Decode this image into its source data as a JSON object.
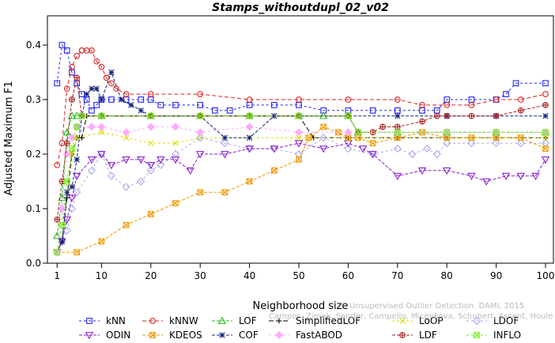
{
  "chart_data": {
    "type": "line",
    "title": "Stamps_withoutdupl_02_v02",
    "xlabel": "Neighborhood size",
    "ylabel": "Adjusted Maximum F1",
    "xlim": [
      0,
      100
    ],
    "ylim": [
      0,
      0.45
    ],
    "xticks": [
      1,
      10,
      20,
      30,
      40,
      50,
      60,
      70,
      80,
      90,
      100
    ],
    "yticks": [
      0.0,
      0.1,
      0.2,
      0.3,
      0.4
    ],
    "grid": false,
    "legend_position": "bottom",
    "watermark": "E. Campos, A. Zimek, J. Sander, R. Campello, B. Micenkova, E. Schubert, I. Assent, M. Houle Unsupervised Outlier Detection. DAMI, 2015.",
    "watermark_lines": [
      "Unsupervised Outlier Detection. DAMI, 2015.",
      "Campos, Zimek, Sander, Campello, Micenkova, Schubert, Assent, Houle"
    ],
    "series": [
      {
        "name": "kNN",
        "color": "#2222ff",
        "marker": "square",
        "dash": "3,3",
        "points": [
          [
            1,
            0.33
          ],
          [
            2,
            0.4
          ],
          [
            3,
            0.39
          ],
          [
            4,
            0.35
          ],
          [
            5,
            0.33
          ],
          [
            6,
            0.31
          ],
          [
            7,
            0.3
          ],
          [
            8,
            0.28
          ],
          [
            9,
            0.29
          ],
          [
            10,
            0.3
          ],
          [
            12,
            0.3
          ],
          [
            15,
            0.3
          ],
          [
            18,
            0.3
          ],
          [
            20,
            0.3
          ],
          [
            22,
            0.29
          ],
          [
            25,
            0.29
          ],
          [
            30,
            0.29
          ],
          [
            33,
            0.28
          ],
          [
            36,
            0.28
          ],
          [
            40,
            0.29
          ],
          [
            45,
            0.29
          ],
          [
            50,
            0.29
          ],
          [
            55,
            0.28
          ],
          [
            60,
            0.28
          ],
          [
            65,
            0.28
          ],
          [
            70,
            0.28
          ],
          [
            75,
            0.28
          ],
          [
            78,
            0.28
          ],
          [
            80,
            0.3
          ],
          [
            85,
            0.3
          ],
          [
            90,
            0.3
          ],
          [
            92,
            0.31
          ],
          [
            94,
            0.33
          ],
          [
            100,
            0.33
          ]
        ]
      },
      {
        "name": "kNNW",
        "color": "#dd2222",
        "marker": "circle",
        "dash": "5,3",
        "points": [
          [
            1,
            0.18
          ],
          [
            2,
            0.22
          ],
          [
            3,
            0.32
          ],
          [
            4,
            0.36
          ],
          [
            5,
            0.38
          ],
          [
            6,
            0.39
          ],
          [
            7,
            0.39
          ],
          [
            8,
            0.39
          ],
          [
            9,
            0.37
          ],
          [
            10,
            0.36
          ],
          [
            11,
            0.34
          ],
          [
            12,
            0.33
          ],
          [
            13,
            0.32
          ],
          [
            15,
            0.31
          ],
          [
            20,
            0.31
          ],
          [
            30,
            0.31
          ],
          [
            40,
            0.3
          ],
          [
            50,
            0.3
          ],
          [
            60,
            0.3
          ],
          [
            70,
            0.3
          ],
          [
            75,
            0.29
          ],
          [
            80,
            0.29
          ],
          [
            85,
            0.29
          ],
          [
            90,
            0.3
          ],
          [
            95,
            0.3
          ],
          [
            100,
            0.31
          ]
        ]
      },
      {
        "name": "LOF",
        "color": "#22bb22",
        "marker": "triangle",
        "dash": "4,2",
        "points": [
          [
            1,
            0.05
          ],
          [
            2,
            0.12
          ],
          [
            3,
            0.24
          ],
          [
            4,
            0.27
          ],
          [
            5,
            0.27
          ],
          [
            10,
            0.27
          ],
          [
            20,
            0.27
          ],
          [
            30,
            0.27
          ],
          [
            40,
            0.27
          ],
          [
            50,
            0.27
          ],
          [
            55,
            0.27
          ],
          [
            60,
            0.27
          ],
          [
            62,
            0.24
          ],
          [
            70,
            0.24
          ],
          [
            80,
            0.24
          ],
          [
            90,
            0.24
          ],
          [
            100,
            0.24
          ]
        ]
      },
      {
        "name": "SimplifiedLOF",
        "color": "#000000",
        "marker": "plus",
        "dash": "6,3",
        "points": [
          [
            1,
            0.02
          ],
          [
            2,
            0.04
          ],
          [
            3,
            0.12
          ],
          [
            4,
            0.2
          ],
          [
            5,
            0.23
          ],
          [
            6,
            0.23
          ],
          [
            7,
            0.27
          ],
          [
            10,
            0.27
          ],
          [
            20,
            0.27
          ],
          [
            30,
            0.27
          ],
          [
            40,
            0.27
          ],
          [
            50,
            0.27
          ],
          [
            53,
            0.23
          ],
          [
            60,
            0.23
          ],
          [
            70,
            0.23
          ],
          [
            80,
            0.23
          ],
          [
            90,
            0.23
          ],
          [
            100,
            0.23
          ]
        ]
      },
      {
        "name": "LoOP",
        "color": "#dddd00",
        "marker": "x",
        "dash": "3,3",
        "points": [
          [
            1,
            0.02
          ],
          [
            2,
            0.07
          ],
          [
            3,
            0.15
          ],
          [
            4,
            0.2
          ],
          [
            5,
            0.23
          ],
          [
            10,
            0.24
          ],
          [
            15,
            0.23
          ],
          [
            20,
            0.22
          ],
          [
            25,
            0.22
          ],
          [
            30,
            0.23
          ],
          [
            40,
            0.23
          ],
          [
            50,
            0.23
          ],
          [
            60,
            0.23
          ],
          [
            70,
            0.23
          ],
          [
            80,
            0.23
          ],
          [
            90,
            0.23
          ],
          [
            100,
            0.23
          ]
        ]
      },
      {
        "name": "LDOF",
        "color": "#aaaaee",
        "marker": "diamond",
        "dash": "3,3",
        "points": [
          [
            1,
            0.02
          ],
          [
            2,
            0.04
          ],
          [
            3,
            0.06
          ],
          [
            4,
            0.1
          ],
          [
            5,
            0.13
          ],
          [
            8,
            0.17
          ],
          [
            10,
            0.2
          ],
          [
            12,
            0.16
          ],
          [
            15,
            0.14
          ],
          [
            18,
            0.15
          ],
          [
            20,
            0.17
          ],
          [
            22,
            0.18
          ],
          [
            25,
            0.2
          ],
          [
            30,
            0.23
          ],
          [
            35,
            0.22
          ],
          [
            40,
            0.21
          ],
          [
            45,
            0.21
          ],
          [
            50,
            0.2
          ],
          [
            55,
            0.23
          ],
          [
            60,
            0.21
          ],
          [
            65,
            0.2
          ],
          [
            70,
            0.21
          ],
          [
            73,
            0.2
          ],
          [
            76,
            0.21
          ],
          [
            78,
            0.2
          ],
          [
            80,
            0.22
          ],
          [
            85,
            0.22
          ],
          [
            90,
            0.22
          ],
          [
            95,
            0.22
          ],
          [
            100,
            0.22
          ]
        ]
      },
      {
        "name": "ODIN",
        "color": "#8822cc",
        "marker": "triangle-down",
        "dash": "4,2",
        "points": [
          [
            1,
            0.02
          ],
          [
            2,
            0.04
          ],
          [
            3,
            0.08
          ],
          [
            4,
            0.12
          ],
          [
            5,
            0.16
          ],
          [
            8,
            0.19
          ],
          [
            10,
            0.2
          ],
          [
            12,
            0.18
          ],
          [
            15,
            0.19
          ],
          [
            18,
            0.19
          ],
          [
            20,
            0.18
          ],
          [
            22,
            0.19
          ],
          [
            25,
            0.19
          ],
          [
            28,
            0.17
          ],
          [
            30,
            0.2
          ],
          [
            35,
            0.2
          ],
          [
            40,
            0.21
          ],
          [
            45,
            0.21
          ],
          [
            50,
            0.22
          ],
          [
            55,
            0.21
          ],
          [
            60,
            0.22
          ],
          [
            63,
            0.21
          ],
          [
            65,
            0.2
          ],
          [
            70,
            0.16
          ],
          [
            75,
            0.17
          ],
          [
            80,
            0.17
          ],
          [
            85,
            0.16
          ],
          [
            88,
            0.15
          ],
          [
            92,
            0.16
          ],
          [
            95,
            0.16
          ],
          [
            98,
            0.16
          ],
          [
            100,
            0.19
          ]
        ]
      },
      {
        "name": "KDEOS",
        "color": "#ee9900",
        "marker": "square-x",
        "dash": "4,2",
        "points": [
          [
            1,
            0.02
          ],
          [
            5,
            0.02
          ],
          [
            10,
            0.04
          ],
          [
            15,
            0.07
          ],
          [
            20,
            0.09
          ],
          [
            25,
            0.11
          ],
          [
            30,
            0.13
          ],
          [
            35,
            0.13
          ],
          [
            40,
            0.15
          ],
          [
            45,
            0.17
          ],
          [
            50,
            0.19
          ],
          [
            52,
            0.23
          ],
          [
            55,
            0.25
          ],
          [
            58,
            0.24
          ],
          [
            60,
            0.23
          ],
          [
            62,
            0.23
          ],
          [
            65,
            0.22
          ],
          [
            70,
            0.23
          ],
          [
            75,
            0.24
          ],
          [
            80,
            0.23
          ],
          [
            85,
            0.23
          ],
          [
            90,
            0.23
          ],
          [
            95,
            0.23
          ],
          [
            100,
            0.21
          ]
        ]
      },
      {
        "name": "COF",
        "color": "#112277",
        "marker": "asterisk",
        "dash": "4,2",
        "points": [
          [
            1,
            0.02
          ],
          [
            2,
            0.04
          ],
          [
            3,
            0.13
          ],
          [
            4,
            0.14
          ],
          [
            5,
            0.19
          ],
          [
            6,
            0.27
          ],
          [
            7,
            0.31
          ],
          [
            8,
            0.32
          ],
          [
            9,
            0.32
          ],
          [
            10,
            0.3
          ],
          [
            12,
            0.35
          ],
          [
            14,
            0.3
          ],
          [
            16,
            0.29
          ],
          [
            18,
            0.28
          ],
          [
            20,
            0.27
          ],
          [
            30,
            0.27
          ],
          [
            35,
            0.23
          ],
          [
            40,
            0.23
          ],
          [
            45,
            0.27
          ],
          [
            50,
            0.27
          ],
          [
            60,
            0.27
          ],
          [
            70,
            0.27
          ],
          [
            80,
            0.27
          ],
          [
            90,
            0.27
          ],
          [
            100,
            0.27
          ]
        ]
      },
      {
        "name": "FastABOD",
        "color": "#ffaaff",
        "marker": "diamond-filled",
        "dash": "3,3",
        "points": [
          [
            1,
            0.02
          ],
          [
            2,
            0.1
          ],
          [
            3,
            0.2
          ],
          [
            4,
            0.23
          ],
          [
            5,
            0.25
          ],
          [
            8,
            0.25
          ],
          [
            10,
            0.25
          ],
          [
            15,
            0.24
          ],
          [
            20,
            0.25
          ],
          [
            25,
            0.25
          ],
          [
            30,
            0.24
          ],
          [
            40,
            0.25
          ],
          [
            50,
            0.24
          ],
          [
            60,
            0.24
          ],
          [
            70,
            0.24
          ],
          [
            80,
            0.24
          ],
          [
            90,
            0.24
          ],
          [
            100,
            0.24
          ]
        ]
      },
      {
        "name": "LDF",
        "color": "#aa2222",
        "marker": "circle-plus",
        "dash": "4,2",
        "points": [
          [
            1,
            0.08
          ],
          [
            2,
            0.15
          ],
          [
            3,
            0.22
          ],
          [
            4,
            0.3
          ],
          [
            5,
            0.34
          ],
          [
            6,
            0.27
          ],
          [
            10,
            0.27
          ],
          [
            20,
            0.27
          ],
          [
            30,
            0.27
          ],
          [
            40,
            0.27
          ],
          [
            50,
            0.27
          ],
          [
            60,
            0.27
          ],
          [
            62,
            0.24
          ],
          [
            65,
            0.24
          ],
          [
            67,
            0.25
          ],
          [
            70,
            0.25
          ],
          [
            75,
            0.26
          ],
          [
            78,
            0.27
          ],
          [
            80,
            0.27
          ],
          [
            85,
            0.27
          ],
          [
            90,
            0.27
          ],
          [
            95,
            0.28
          ],
          [
            100,
            0.29
          ]
        ]
      },
      {
        "name": "INFLO",
        "color": "#77ee22",
        "marker": "square-x",
        "dash": "3,3",
        "points": [
          [
            1,
            0.02
          ],
          [
            2,
            0.07
          ],
          [
            3,
            0.15
          ],
          [
            4,
            0.21
          ],
          [
            5,
            0.25
          ],
          [
            6,
            0.27
          ],
          [
            10,
            0.27
          ],
          [
            20,
            0.27
          ],
          [
            30,
            0.27
          ],
          [
            40,
            0.27
          ],
          [
            50,
            0.27
          ],
          [
            60,
            0.27
          ],
          [
            62,
            0.24
          ],
          [
            70,
            0.24
          ],
          [
            80,
            0.24
          ],
          [
            90,
            0.24
          ],
          [
            100,
            0.24
          ]
        ]
      }
    ],
    "legend_rows": [
      [
        "kNN",
        "kNNW",
        "LOF",
        "SimplifiedLOF",
        "LoOP",
        "LDOF"
      ],
      [
        "ODIN",
        "KDEOS",
        "COF",
        "FastABOD",
        "LDF",
        "INFLO"
      ]
    ]
  }
}
